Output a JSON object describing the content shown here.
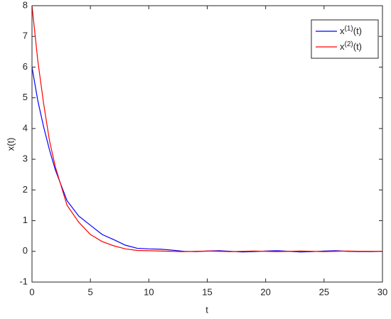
{
  "chart_data": {
    "type": "line",
    "x_label": "t",
    "y_label": "x(t)",
    "x": [
      0,
      0.5,
      1,
      1.5,
      2,
      3,
      4,
      5,
      6,
      7,
      8,
      9,
      10,
      11,
      12,
      13,
      14,
      15,
      16,
      17,
      18,
      19,
      20,
      21,
      22,
      23,
      24,
      25,
      26,
      27,
      28,
      29,
      30
    ],
    "series": [
      {
        "name": "x(1)(t)",
        "color": "#0000ff",
        "values": [
          6,
          4.9,
          4.05,
          3.3,
          2.65,
          1.65,
          1.15,
          0.85,
          0.55,
          0.38,
          0.2,
          0.1,
          0.08,
          0.07,
          0.04,
          0,
          -0.01,
          0.01,
          0.02,
          0,
          -0.02,
          -0.01,
          0.01,
          0.02,
          0,
          -0.02,
          -0.01,
          0.01,
          0.02,
          0,
          -0.01,
          -0.01,
          0
        ]
      },
      {
        "name": "x(2)(t)",
        "color": "#ff0000",
        "values": [
          8,
          6.2,
          4.8,
          3.6,
          2.75,
          1.5,
          0.95,
          0.55,
          0.32,
          0.18,
          0.08,
          0.03,
          0.02,
          0.01,
          0,
          -0.01,
          0,
          0.01,
          0,
          -0.01,
          0,
          0.01,
          0,
          -0.01,
          0,
          0.01,
          0,
          -0.01,
          0,
          0.01,
          0,
          0,
          0
        ]
      }
    ],
    "xlim": [
      0,
      30
    ],
    "ylim": [
      -1,
      8
    ],
    "xticks": [
      0,
      5,
      10,
      15,
      20,
      25,
      30
    ],
    "yticks": [
      -1,
      0,
      1,
      2,
      3,
      4,
      5,
      6,
      7,
      8
    ],
    "grid": false,
    "legend": "top-right"
  }
}
